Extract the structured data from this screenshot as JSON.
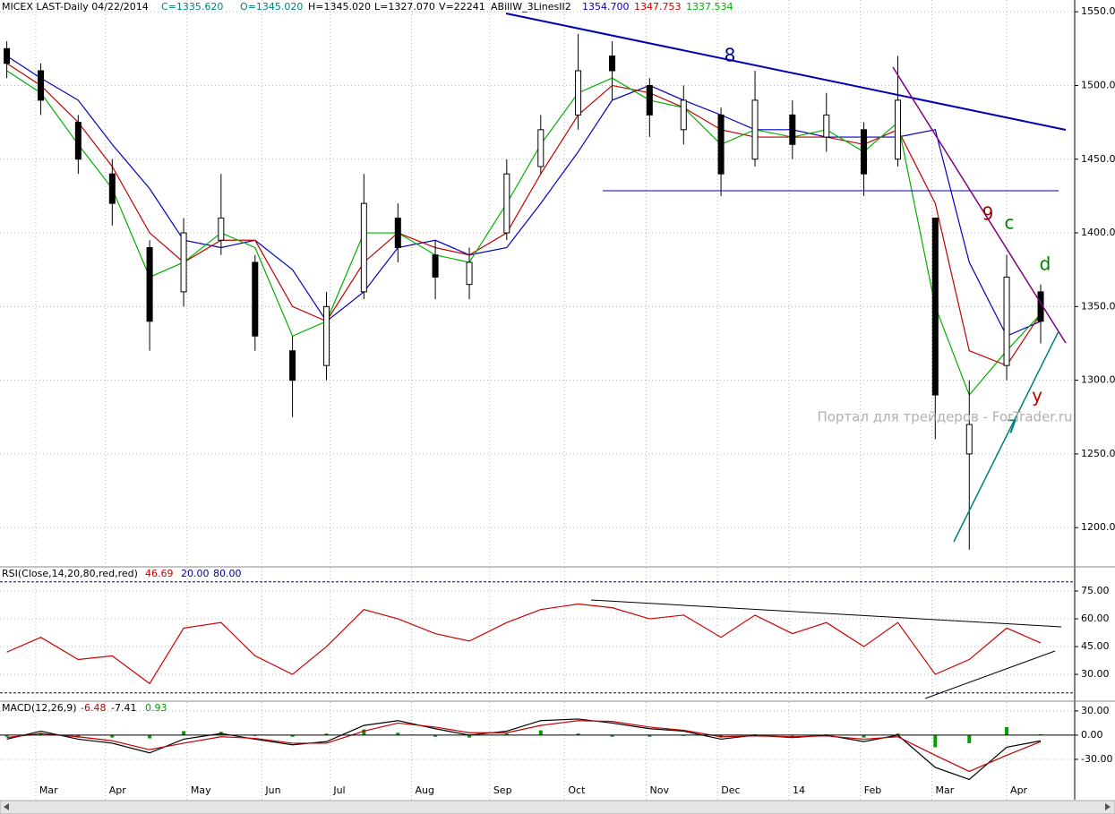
{
  "header": {
    "symbol": "MICEX LAST-Daily  04/22/2014",
    "close": "C=1335.620",
    "open": "O=1345.020",
    "high": "H=1345.020",
    "low": "L=1327.070",
    "volume": "V=22241",
    "indicator": "ABillW_3LinesII2",
    "indicator_values": [
      "1354.700",
      "1347.753",
      "1337.534"
    ]
  },
  "annotations": {
    "wave_8": "8",
    "wave_9": "9",
    "wave_c": "c",
    "wave_d": "d",
    "wave_y": "y",
    "wave_7": "7",
    "watermark": "Портал для трейдеров - ForTrader.ru"
  },
  "chart_data": [
    {
      "type": "candlestick",
      "x": [
        2,
        12,
        23,
        33,
        44,
        54,
        65,
        75,
        86,
        96,
        107,
        117,
        128,
        138,
        149,
        159,
        170,
        180,
        191,
        201,
        212,
        222,
        233,
        243,
        254,
        264,
        275,
        285,
        296,
        306
      ],
      "open": [
        1525,
        1510,
        1475,
        1440,
        1390,
        1360,
        1395,
        1380,
        1320,
        1310,
        1360,
        1410,
        1385,
        1365,
        1400,
        1445,
        1480,
        1520,
        1500,
        1470,
        1480,
        1450,
        1480,
        1465,
        1470,
        1450,
        1410,
        1250,
        1310,
        1360
      ],
      "high": [
        1530,
        1515,
        1480,
        1450,
        1395,
        1410,
        1440,
        1385,
        1330,
        1360,
        1440,
        1420,
        1395,
        1390,
        1450,
        1480,
        1535,
        1530,
        1505,
        1500,
        1485,
        1510,
        1490,
        1495,
        1475,
        1520,
        1410,
        1300,
        1385,
        1365
      ],
      "low": [
        1505,
        1480,
        1440,
        1405,
        1320,
        1350,
        1385,
        1320,
        1275,
        1300,
        1355,
        1380,
        1355,
        1355,
        1395,
        1440,
        1470,
        1490,
        1465,
        1460,
        1425,
        1445,
        1450,
        1455,
        1425,
        1445,
        1260,
        1185,
        1300,
        1325
      ],
      "close": [
        1515,
        1490,
        1450,
        1420,
        1340,
        1400,
        1410,
        1330,
        1300,
        1350,
        1420,
        1390,
        1370,
        1380,
        1440,
        1470,
        1510,
        1510,
        1480,
        1490,
        1440,
        1490,
        1460,
        1480,
        1440,
        1490,
        1290,
        1270,
        1370,
        1340
      ],
      "color": "#000000",
      "series": [
        {
          "color": "#0000c0",
          "values": [
            1520,
            1505,
            1490,
            1460,
            1430,
            1395,
            1390,
            1395,
            1375,
            1340,
            1360,
            1390,
            1395,
            1385,
            1390,
            1420,
            1455,
            1490,
            1500,
            1490,
            1480,
            1470,
            1470,
            1465,
            1465,
            1465,
            1470,
            1380,
            1330,
            1340
          ]
        },
        {
          "color": "#c00000",
          "values": [
            1515,
            1500,
            1475,
            1445,
            1400,
            1380,
            1395,
            1395,
            1350,
            1340,
            1380,
            1400,
            1390,
            1385,
            1400,
            1440,
            1480,
            1500,
            1495,
            1485,
            1470,
            1465,
            1465,
            1465,
            1460,
            1470,
            1420,
            1320,
            1310,
            1345
          ]
        },
        {
          "color": "#00b000",
          "values": [
            1510,
            1495,
            1460,
            1430,
            1370,
            1380,
            1400,
            1390,
            1330,
            1340,
            1400,
            1400,
            1385,
            1380,
            1420,
            1460,
            1495,
            1505,
            1490,
            1485,
            1460,
            1470,
            1465,
            1470,
            1455,
            1475,
            1350,
            1290,
            1320,
            1345
          ]
        }
      ],
      "xlim": [
        0,
        316
      ],
      "xticks": [
        {
          "value": 10.5,
          "label": "Mar"
        },
        {
          "value": 31,
          "label": "Apr"
        },
        {
          "value": 55,
          "label": "May"
        },
        {
          "value": 77,
          "label": "Jun"
        },
        {
          "value": 97,
          "label": "Jul"
        },
        {
          "value": 121,
          "label": "Aug"
        },
        {
          "value": 144,
          "label": "Sep"
        },
        {
          "value": 166,
          "label": "Oct"
        },
        {
          "value": 190,
          "label": "Nov"
        },
        {
          "value": 211,
          "label": "Dec"
        },
        {
          "value": 232,
          "label": "14"
        },
        {
          "value": 253,
          "label": "Feb"
        },
        {
          "value": 274,
          "label": "Mar"
        },
        {
          "value": 296,
          "label": "Apr"
        }
      ],
      "ylim": [
        1174,
        1558
      ],
      "yticks": [
        {
          "value": 1200,
          "label": "1200.0"
        },
        {
          "value": 1250,
          "label": "1250.0"
        },
        {
          "value": 1300,
          "label": "1300.0"
        },
        {
          "value": 1350,
          "label": "1350.0"
        },
        {
          "value": 1400,
          "label": "1400.0"
        },
        {
          "value": 1450,
          "label": "1450.0"
        },
        {
          "value": 1500,
          "label": "1500.0"
        },
        {
          "value": 1550,
          "label": "1550.0"
        }
      ],
      "grid": true
    },
    {
      "type": "line",
      "title": "RSI(Close,14,20,80,red,red)",
      "last_value_label": "46.69",
      "series": [
        {
          "color": "#cc0000",
          "values": [
            42,
            50,
            38,
            40,
            25,
            55,
            58,
            40,
            30,
            45,
            65,
            60,
            52,
            48,
            58,
            65,
            68,
            66,
            60,
            62,
            50,
            62,
            52,
            58,
            45,
            58,
            30,
            38,
            55,
            47
          ]
        }
      ],
      "levels": [
        {
          "value": 20,
          "label": "20.00"
        },
        {
          "value": 80,
          "label": "80.00"
        }
      ],
      "ylim": [
        16,
        87.6
      ],
      "yticks": [
        {
          "value": 30,
          "label": "30.00"
        },
        {
          "value": 45,
          "label": "45.00"
        },
        {
          "value": 60,
          "label": "60.00"
        },
        {
          "value": 75,
          "label": "75.00"
        }
      ],
      "grid": true
    },
    {
      "type": "line",
      "title": "MACD(12,26,9)",
      "legend_values": [
        "-6.48",
        "-7.41",
        "0.93"
      ],
      "series": [
        {
          "type": "bar",
          "color": "#00a000",
          "values": [
            -2,
            3,
            -3,
            -3,
            -4,
            5,
            4,
            -1,
            -2,
            2,
            7,
            3,
            -2,
            -3,
            2,
            6,
            2,
            -2,
            -2,
            -1,
            -3,
            1,
            -1,
            1,
            -3,
            2,
            -15,
            -10,
            10,
            1
          ]
        },
        {
          "color": "#000000",
          "values": [
            -5,
            5,
            -5,
            -10,
            -22,
            -5,
            2,
            -5,
            -12,
            -8,
            12,
            18,
            8,
            0,
            5,
            18,
            20,
            15,
            8,
            5,
            -5,
            0,
            -3,
            0,
            -8,
            0,
            -40,
            -55,
            -15,
            -7
          ]
        },
        {
          "color": "#c00000",
          "values": [
            -3,
            2,
            -2,
            -7,
            -18,
            -10,
            -2,
            -4,
            -10,
            -10,
            5,
            15,
            10,
            3,
            3,
            12,
            18,
            17,
            10,
            6,
            -2,
            -1,
            -2,
            -1,
            -5,
            -2,
            -25,
            -45,
            -25,
            -8
          ]
        }
      ],
      "ylim": [
        -80,
        41
      ],
      "yticks": [
        {
          "value": -30,
          "label": "-30.00"
        },
        {
          "value": 0,
          "label": "0.00"
        },
        {
          "value": 30,
          "label": "30.00"
        }
      ],
      "grid": true
    }
  ]
}
